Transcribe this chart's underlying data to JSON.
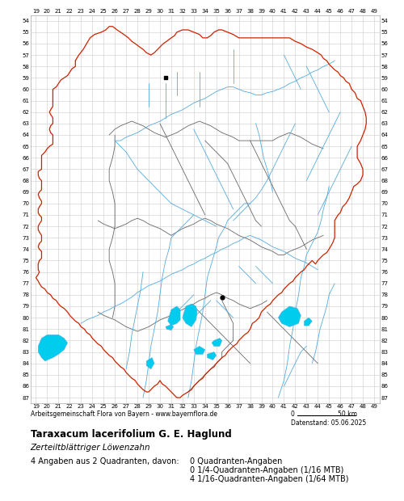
{
  "title": "Taraxacum lacerifolium G. E. Haglund",
  "subtitle": "Zerteiltblättriger Löwenzahn",
  "attribution": "Arbeitsgemeinschaft Flora von Bayern - www.bayernflora.de",
  "date_label": "Datenstand: 05.06.2025",
  "stats_line1": "4 Angaben aus 2 Quadranten, davon:",
  "stats_right1": "0 Quadranten-Angaben",
  "stats_right2": "0 1/4-Quadranten-Angaben (1/16 MTB)",
  "stats_right3": "4 1/16-Quadranten-Angaben (1/64 MTB)",
  "x_ticks": [
    19,
    20,
    21,
    22,
    23,
    24,
    25,
    26,
    27,
    28,
    29,
    30,
    31,
    32,
    33,
    34,
    35,
    36,
    37,
    38,
    39,
    40,
    41,
    42,
    43,
    44,
    45,
    46,
    47,
    48,
    49
  ],
  "y_ticks": [
    54,
    55,
    56,
    57,
    58,
    59,
    60,
    61,
    62,
    63,
    64,
    65,
    66,
    67,
    68,
    69,
    70,
    71,
    72,
    73,
    74,
    75,
    76,
    77,
    78,
    79,
    80,
    81,
    82,
    83,
    84,
    85,
    86,
    87
  ],
  "x_min": 19,
  "x_max": 49,
  "y_min": 54,
  "y_max": 87,
  "map_bg": "#ffffff",
  "grid_color": "#cccccc",
  "outer_border_color": "#cc2200",
  "inner_border_color": "#666666",
  "river_color": "#55aadd",
  "lake_color": "#00ccee",
  "marker_black_square": [
    [
      30.5,
      59.0
    ]
  ],
  "marker_black_dot": [
    [
      35.5,
      78.2
    ]
  ],
  "fig_bg": "#ffffff",
  "text_color": "#000000"
}
